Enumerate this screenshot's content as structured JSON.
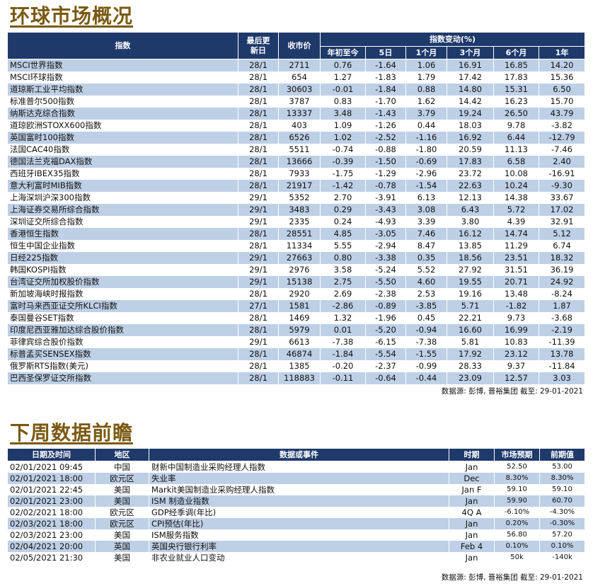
{
  "market": {
    "title": "环球市场概况",
    "headers": {
      "index": "指数",
      "last_update": "最后更新日",
      "close": "收市价",
      "change_group": "指数变动(%)",
      "periods": [
        "年初至今",
        "5日",
        "1个月",
        "3个月",
        "6个月",
        "1年"
      ]
    },
    "rows": [
      {
        "name": "MSCI世界指数",
        "date": "28/1",
        "close": "2711",
        "ytd": "0.76",
        "d5": "-1.64",
        "m1": "1.06",
        "m3": "16.91",
        "m6": "16.85",
        "y1": "14.20"
      },
      {
        "name": "MSCI环球指数",
        "date": "28/1",
        "close": "654",
        "ytd": "1.27",
        "d5": "-1.83",
        "m1": "1.79",
        "m3": "17.42",
        "m6": "17.83",
        "y1": "15.36"
      },
      {
        "name": "道琼斯工业平均指数",
        "date": "28/1",
        "close": "30603",
        "ytd": "-0.01",
        "d5": "-1.84",
        "m1": "0.88",
        "m3": "14.80",
        "m6": "15.31",
        "y1": "6.50"
      },
      {
        "name": "标准普尔500指数",
        "date": "28/1",
        "close": "3787",
        "ytd": "0.83",
        "d5": "-1.70",
        "m1": "1.62",
        "m3": "14.42",
        "m6": "16.23",
        "y1": "15.70"
      },
      {
        "name": "纳斯达克综合指数",
        "date": "28/1",
        "close": "13337",
        "ytd": "3.48",
        "d5": "-1.43",
        "m1": "3.79",
        "m3": "19.24",
        "m6": "26.50",
        "y1": "43.79"
      },
      {
        "name": "道琼欧洲STOXX600指数",
        "date": "28/1",
        "close": "403",
        "ytd": "1.09",
        "d5": "-1.26",
        "m1": "0.44",
        "m3": "18.03",
        "m6": "9.78",
        "y1": "-3.82"
      },
      {
        "name": "英国富时100指数",
        "date": "28/1",
        "close": "6526",
        "ytd": "1.02",
        "d5": "-2.52",
        "m1": "-1.16",
        "m3": "16.92",
        "m6": "6.44",
        "y1": "-12.79"
      },
      {
        "name": "法国CAC40指数",
        "date": "28/1",
        "close": "5511",
        "ytd": "-0.74",
        "d5": "-0.88",
        "m1": "-1.80",
        "m3": "20.59",
        "m6": "11.13",
        "y1": "-7.46"
      },
      {
        "name": "德国法兰克福DAX指数",
        "date": "28/1",
        "close": "13666",
        "ytd": "-0.39",
        "d5": "-1.50",
        "m1": "-0.69",
        "m3": "17.83",
        "m6": "6.58",
        "y1": "2.40"
      },
      {
        "name": "西班牙IBEX35指数",
        "date": "28/1",
        "close": "7933",
        "ytd": "-1.75",
        "d5": "-1.29",
        "m1": "-2.96",
        "m3": "23.72",
        "m6": "10.08",
        "y1": "-16.91"
      },
      {
        "name": "意大利富时MIB指数",
        "date": "28/1",
        "close": "21917",
        "ytd": "-1.42",
        "d5": "-0.78",
        "m1": "-1.54",
        "m3": "22.63",
        "m6": "10.24",
        "y1": "-9.30"
      },
      {
        "name": "上海深圳沪深300指数",
        "date": "29/1",
        "close": "5352",
        "ytd": "2.70",
        "d5": "-3.91",
        "m1": "6.13",
        "m3": "12.13",
        "m6": "14.38",
        "y1": "33.67"
      },
      {
        "name": "上海证券交易所综合指数",
        "date": "29/1",
        "close": "3483",
        "ytd": "0.29",
        "d5": "-3.43",
        "m1": "3.08",
        "m3": "6.43",
        "m6": "5.72",
        "y1": "17.02"
      },
      {
        "name": "深圳证交所综合指数",
        "date": "29/1",
        "close": "2335",
        "ytd": "0.24",
        "d5": "-4.93",
        "m1": "3.39",
        "m3": "3.80",
        "m6": "4.39",
        "y1": "32.91"
      },
      {
        "name": "香港恒生指数",
        "date": "28/1",
        "close": "28551",
        "ytd": "4.85",
        "d5": "-3.05",
        "m1": "7.46",
        "m3": "16.12",
        "m6": "14.74",
        "y1": "5.12"
      },
      {
        "name": "恒生中国企业指数",
        "date": "28/1",
        "close": "11334",
        "ytd": "5.55",
        "d5": "-2.94",
        "m1": "8.47",
        "m3": "13.85",
        "m6": "11.29",
        "y1": "6.74"
      },
      {
        "name": "日经225指数",
        "date": "29/1",
        "close": "27663",
        "ytd": "0.80",
        "d5": "-3.38",
        "m1": "0.35",
        "m3": "18.56",
        "m6": "23.51",
        "y1": "18.32"
      },
      {
        "name": "韩国KOSPI指数",
        "date": "29/1",
        "close": "2976",
        "ytd": "3.58",
        "d5": "-5.24",
        "m1": "5.52",
        "m3": "27.92",
        "m6": "31.51",
        "y1": "36.19"
      },
      {
        "name": "台湾证交所加权股价指数",
        "date": "29/1",
        "close": "15138",
        "ytd": "2.75",
        "d5": "-5.50",
        "m1": "4.60",
        "m3": "19.55",
        "m6": "20.71",
        "y1": "24.92"
      },
      {
        "name": "新加坡海峡时报指数",
        "date": "28/1",
        "close": "2920",
        "ytd": "2.69",
        "d5": "-2.38",
        "m1": "2.53",
        "m3": "19.16",
        "m6": "13.48",
        "y1": "-8.24"
      },
      {
        "name": "富时马来西亚证交所KLCI指数",
        "date": "27/1",
        "close": "1581",
        "ytd": "-2.86",
        "d5": "-0.89",
        "m1": "-3.85",
        "m3": "5.71",
        "m6": "-1.82",
        "y1": "1.87"
      },
      {
        "name": "泰国曼谷SET指数",
        "date": "28/1",
        "close": "1469",
        "ytd": "1.32",
        "d5": "-1.96",
        "m1": "0.45",
        "m3": "22.21",
        "m6": "9.73",
        "y1": "-3.68"
      },
      {
        "name": "印度尼西亚雅加达综合股价指数",
        "date": "28/1",
        "close": "5979",
        "ytd": "0.01",
        "d5": "-5.20",
        "m1": "-0.94",
        "m3": "16.60",
        "m6": "16.99",
        "y1": "-2.19"
      },
      {
        "name": "菲律宾综合股价指数",
        "date": "29/1",
        "close": "6613",
        "ytd": "-7.38",
        "d5": "-6.15",
        "m1": "-7.38",
        "m3": "5.81",
        "m6": "10.83",
        "y1": "-11.39"
      },
      {
        "name": "标普孟买SENSEX指数",
        "date": "28/1",
        "close": "46874",
        "ytd": "-1.84",
        "d5": "-5.54",
        "m1": "-1.55",
        "m3": "17.92",
        "m6": "23.12",
        "y1": "13.78"
      },
      {
        "name": "俄罗斯RTS指数(美元)",
        "date": "28/1",
        "close": "1385",
        "ytd": "-0.20",
        "d5": "-2.37",
        "m1": "-0.99",
        "m3": "28.33",
        "m6": "9.37",
        "y1": "-11.84"
      },
      {
        "name": "巴西圣保罗证交所指数",
        "date": "28/1",
        "close": "118883",
        "ytd": "-0.11",
        "d5": "-0.64",
        "m1": "-0.44",
        "m3": "23.09",
        "m6": "12.57",
        "y1": "3.03"
      }
    ],
    "source": "数据源: 彭博, 晋裕集团 截至: 29-01-2021"
  },
  "events": {
    "title": "下周数据前瞻",
    "headers": {
      "datetime": "日期及时间",
      "region": "地区",
      "event": "数据或事件",
      "period": "时期",
      "forecast": "市场预期",
      "previous": "前期值"
    },
    "rows": [
      {
        "datetime": "02/01/2021 09:45",
        "region": "中国",
        "event": "财新中国制造业采购经理人指数",
        "period": "Jan",
        "forecast": "52.50",
        "previous": "53.00"
      },
      {
        "datetime": "02/01/2021 18:00",
        "region": "欧元区",
        "event": "失业率",
        "period": "Dec",
        "forecast": "8.30%",
        "previous": "8.30%"
      },
      {
        "datetime": "02/01/2021 22:45",
        "region": "美国",
        "event": "Markit美国制造业采购经理人指数",
        "period": "Jan F",
        "forecast": "59.10",
        "previous": "59.10"
      },
      {
        "datetime": "02/01/2021 23:00",
        "region": "美国",
        "event": "ISM 制造业指数",
        "period": "Jan",
        "forecast": "59.90",
        "previous": "60.70"
      },
      {
        "datetime": "02/02/2021 18:00",
        "region": "欧元区",
        "event": "GDP经季调(年比)",
        "period": "4Q A",
        "forecast": "-6.10%",
        "previous": "-4.30%"
      },
      {
        "datetime": "02/03/2021 18:00",
        "region": "欧元区",
        "event": "CPI预估(年比)",
        "period": "Jan",
        "forecast": "0.20%",
        "previous": "-0.30%"
      },
      {
        "datetime": "02/03/2021 23:00",
        "region": "美国",
        "event": "ISM服务指数",
        "period": "Jan",
        "forecast": "56.80",
        "previous": "57.20"
      },
      {
        "datetime": "02/04/2021 20:00",
        "region": "英国",
        "event": "英国央行银行利率",
        "period": "Feb 4",
        "forecast": "0.10%",
        "previous": "0.10%"
      },
      {
        "datetime": "02/05/2021 21:30",
        "region": "美国",
        "event": "非农业就业人口变动",
        "period": "Jan",
        "forecast": "50k",
        "previous": "-140k"
      }
    ],
    "source": "数据源: 彭博, 晋裕集团 截至: 29-01-2021"
  }
}
